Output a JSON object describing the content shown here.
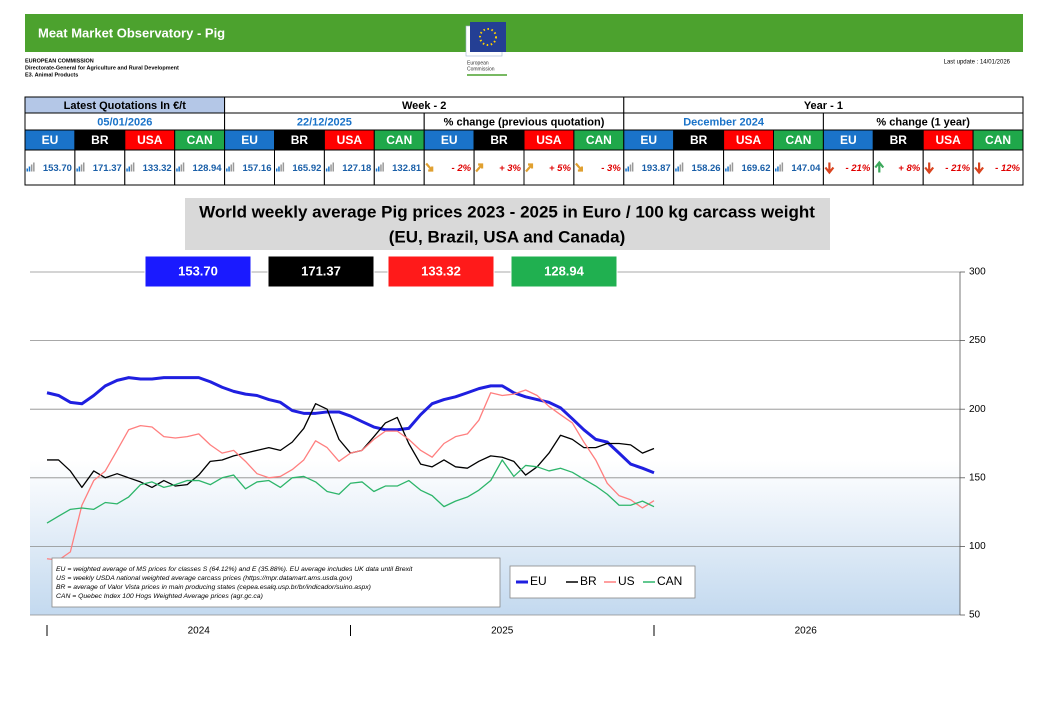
{
  "header": {
    "title": "Meat Market Observatory - Pig",
    "org": [
      "EUROPEAN COMMISSION",
      "Directorate-General for Agriculture and Rural Development",
      "E3. Animal Products"
    ],
    "logo_text": [
      "European",
      "Commission"
    ],
    "last_update": "Last update :  14/01/2026"
  },
  "table": {
    "groups": [
      "Latest Quotations In €/t",
      "Week - 2",
      "Year - 1"
    ],
    "subgroups": [
      "05/01/2026",
      "22/12/2025",
      "% change (previous quotation)",
      "December 2024",
      "% change (1 year)"
    ],
    "countries": [
      "EU",
      "BR",
      "USA",
      "CAN"
    ],
    "values": [
      "153.70",
      "171.37",
      "133.32",
      "128.94",
      "157.16",
      "165.92",
      "127.18",
      "132.81",
      "- 2%",
      "+ 3%",
      "+ 5%",
      "- 3%",
      "193.87",
      "158.26",
      "169.62",
      "147.04",
      "- 21%",
      "+ 8%",
      "- 21%",
      "- 12%"
    ]
  },
  "chart_data": {
    "type": "line",
    "title": "World weekly average Pig prices 2023 - 2025  in Euro / 100 kg carcass weight",
    "subtitle": "(EU, Brazil, USA and Canada)",
    "value_box_colors": [
      "#1a1aff",
      "#000000",
      "#ff1a1a",
      "#20b050"
    ],
    "x": [
      2024,
      2024.038,
      2024.077,
      2024.115,
      2024.154,
      2024.192,
      2024.231,
      2024.269,
      2024.308,
      2024.346,
      2024.385,
      2024.423,
      2024.462,
      2024.5,
      2024.538,
      2024.577,
      2024.615,
      2024.654,
      2024.692,
      2024.731,
      2024.769,
      2024.808,
      2024.846,
      2024.885,
      2024.923,
      2024.962,
      2025,
      2025.038,
      2025.077,
      2025.115,
      2025.154,
      2025.192,
      2025.231,
      2025.269,
      2025.308,
      2025.346,
      2025.385,
      2025.423,
      2025.462,
      2025.5,
      2025.538,
      2025.577,
      2025.615,
      2025.654,
      2025.692,
      2025.731,
      2025.769,
      2025.808,
      2025.846,
      2025.885,
      2025.923,
      2025.962,
      2026
    ],
    "series": [
      {
        "name": "EU",
        "color": "#1f1fe0",
        "values": [
          212,
          210,
          205,
          204,
          210,
          217,
          221,
          223,
          222,
          222,
          223,
          223,
          223,
          223,
          220,
          216,
          213,
          211,
          210,
          207,
          205,
          199,
          197,
          197,
          198,
          198,
          195,
          191,
          187,
          185,
          185,
          186,
          196,
          204,
          207,
          209,
          212,
          215,
          217,
          217,
          212,
          209,
          207,
          205,
          201,
          193,
          185,
          178,
          176,
          168,
          160,
          157,
          153.7
        ]
      },
      {
        "name": "BR",
        "color": "#000000",
        "values": [
          163,
          163,
          155,
          143,
          155,
          150,
          153,
          150,
          147,
          143,
          148,
          144,
          145,
          152,
          162,
          163,
          166,
          168,
          170,
          172,
          170,
          176,
          186,
          204,
          200,
          178,
          168,
          170,
          180,
          190,
          194,
          175,
          160,
          158,
          163,
          158,
          157,
          162,
          166,
          165,
          162,
          152,
          158,
          168,
          181,
          178,
          172,
          172,
          175,
          175,
          174,
          168,
          171.37
        ]
      },
      {
        "name": "US",
        "color": "#ff7f7f",
        "values": [
          91,
          90,
          96,
          130,
          148,
          155,
          170,
          185,
          188,
          187,
          180,
          179,
          180,
          182,
          174,
          168,
          170,
          162,
          153,
          150,
          151,
          156,
          163,
          177,
          172,
          162,
          168,
          170,
          178,
          184,
          184,
          178,
          170,
          165,
          175,
          180,
          182,
          192,
          212,
          210,
          211,
          214,
          210,
          202,
          196,
          190,
          176,
          163,
          146,
          137,
          134,
          128,
          133.32
        ]
      },
      {
        "name": "CAN",
        "color": "#2db56a",
        "values": [
          117,
          122,
          127,
          128,
          127,
          132,
          131,
          136,
          145,
          147,
          143,
          145,
          148,
          148,
          145,
          150,
          152,
          142,
          147,
          148,
          143,
          150,
          151,
          147,
          140,
          138,
          146,
          147,
          140,
          144,
          144,
          148,
          141,
          137,
          129,
          133,
          136,
          141,
          148,
          163,
          151,
          159,
          158,
          155,
          157,
          154,
          149,
          144,
          138,
          130,
          130,
          133,
          128.94
        ]
      }
    ],
    "xlim": [
      2024,
      2027
    ],
    "xticks": [
      2024,
      2025,
      2026
    ],
    "ylim": [
      50,
      300
    ],
    "yticks": [
      50,
      100,
      150,
      200,
      250,
      300
    ],
    "grid": true,
    "notes": [
      "EU    = weighted average of MS prices for classes S (64.12%) and E (35.88%). EU average includes UK data  until Brexit",
      "US    = weekly USDA national weighted average carcass prices (https://mpr.datamart.ams.usda.gov)",
      "BR    = average of Valor Vista prices in main producing states (cepea.esalq.usp.br/br/indicador/suino.aspx)",
      "CAN = Quebec Index 100 Hogs Weighted Average prices (agr.gc.ca)"
    ]
  }
}
